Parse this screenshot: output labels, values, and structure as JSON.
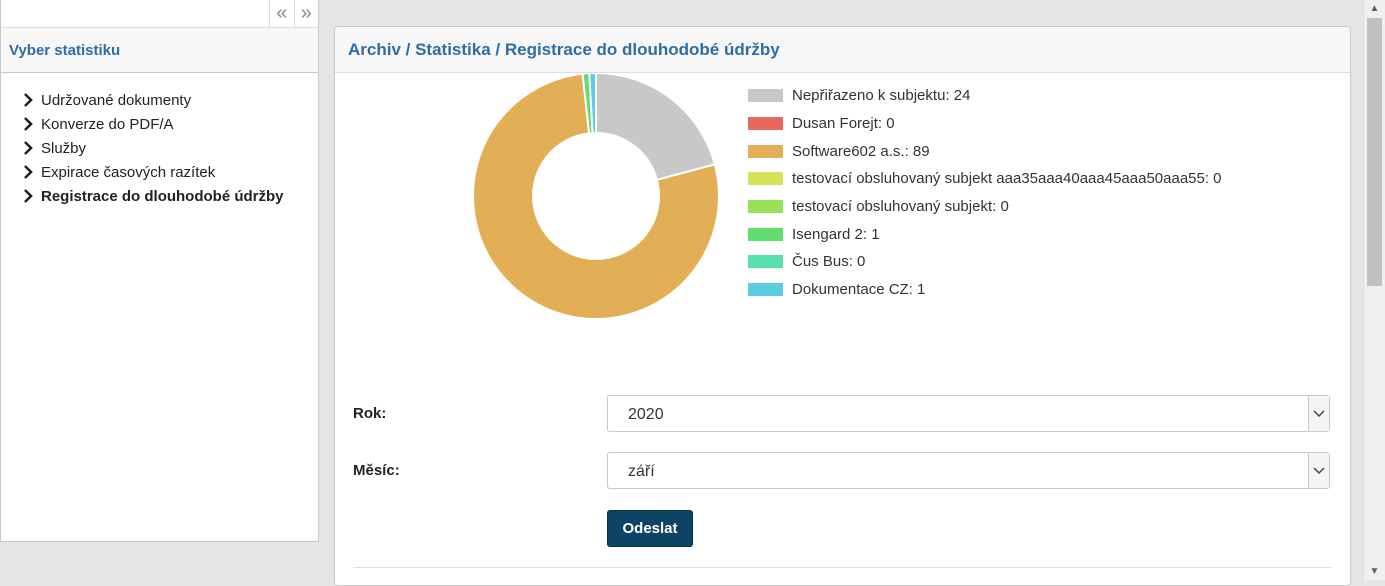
{
  "sidebar": {
    "collapse_icon": "«",
    "expand_icon": "»",
    "title": "Vyber statistiku",
    "items": [
      {
        "label": "Udržované dokumenty"
      },
      {
        "label": "Konverze do PDF/A"
      },
      {
        "label": "Služby"
      },
      {
        "label": "Expirace časových razítek"
      },
      {
        "label": "Registrace do dlouhodobé údržby"
      }
    ]
  },
  "main": {
    "breadcrumb": "Archiv / Statistika / Registrace do dlouhodobé údržby",
    "form": {
      "year_label": "Rok:",
      "year_value": "2020",
      "month_label": "Měsíc:",
      "month_value": "září",
      "submit_label": "Odeslat"
    }
  },
  "chart_data": {
    "type": "pie",
    "donut": true,
    "legend_position": "right",
    "series": [
      {
        "name": "Nepřiřazeno k subjektu",
        "value": 24,
        "color": "#c8c8c8",
        "label": "Nepřiřazeno k subjektu: 24"
      },
      {
        "name": "Dusan Forejt",
        "value": 0,
        "color": "#e8695a",
        "label": "Dusan Forejt: 0"
      },
      {
        "name": "Software602 a.s.",
        "value": 89,
        "color": "#e2ae56",
        "label": "Software602 a.s.: 89"
      },
      {
        "name": "testovací obsluhovaný subjekt aaa35aaa40aaa45aaa50aaa55",
        "value": 0,
        "color": "#d6e359",
        "label": "testovací obsluhovaný subjekt aaa35aaa40aaa45aaa50aaa55: 0"
      },
      {
        "name": "testovací obsluhovaný subjekt",
        "value": 0,
        "color": "#9ae15a",
        "label": "testovací obsluhovaný subjekt: 0"
      },
      {
        "name": "Isengard 2",
        "value": 1,
        "color": "#5fdd6e",
        "label": "Isengard 2: 1"
      },
      {
        "name": "Čus Bus",
        "value": 0,
        "color": "#5adfae",
        "label": "Čus Bus: 0"
      },
      {
        "name": "Dokumentace CZ",
        "value": 1,
        "color": "#5acde0",
        "label": "Dokumentace CZ: 1"
      }
    ]
  }
}
